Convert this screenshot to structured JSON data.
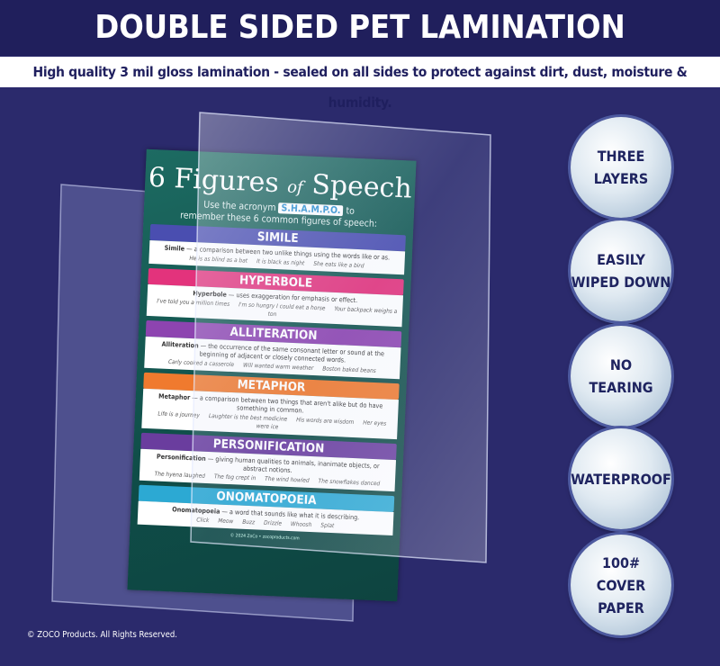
{
  "header": {
    "title": "DOUBLE SIDED PET LAMINATION",
    "subtitle": "High quality 3 mil gloss lamination - sealed on all sides to protect against dirt, dust, moisture & humidity."
  },
  "poster": {
    "title_number": "6 Figures",
    "title_of": "of",
    "title_end": "Speech",
    "intro_start": "Use the acronym",
    "acronym": "S.H.A.M.P.O.",
    "intro_end": "to remember these 6 common figures of speech:",
    "sections": [
      {
        "heading": "SIMILE",
        "color": "#4a4eb0",
        "term": "Simile",
        "definition": "— a comparison between two unlike things using the words like or as.",
        "examples": [
          "He is as blind as a bat",
          "It is black as night",
          "She eats like a bird"
        ]
      },
      {
        "heading": "HYPERBOLE",
        "color": "#e3337c",
        "term": "Hyperbole",
        "definition": "— uses exaggeration for emphasis or effect.",
        "examples": [
          "I've told you a million times",
          "I'm so hungry I could eat a horse",
          "Your backpack weighs a ton"
        ]
      },
      {
        "heading": "ALLITERATION",
        "color": "#8d44b0",
        "term": "Alliteration",
        "definition": "— the occurrence of the same consonant letter or sound at the beginning of adjacent or closely connected words.",
        "examples": [
          "Carly cooked a casserole",
          "Will wanted warm weather",
          "Boston baked beans"
        ]
      },
      {
        "heading": "METAPHOR",
        "color": "#f07a2e",
        "term": "Metaphor",
        "definition": "— a comparison between two things that aren't alike but do have something in common.",
        "examples": [
          "Life is a journey",
          "Laughter is the best medicine",
          "His words are wisdom",
          "Her eyes were ice"
        ]
      },
      {
        "heading": "PERSONIFICATION",
        "color": "#6a3d9e",
        "term": "Personification",
        "definition": "— giving human qualities to animals, inanimate objects, or abstract notions.",
        "examples": [
          "The hyena laughed",
          "The fog crept in",
          "The wind howled",
          "The snowflakes danced"
        ]
      },
      {
        "heading": "ONOMATOPOEIA",
        "color": "#2ca9d3",
        "term": "Onomatopoeia",
        "definition": "— a word that sounds like what it is describing.",
        "examples": [
          "Click",
          "Meow",
          "Buzz",
          "Drizzle",
          "Whoosh",
          "Splat"
        ]
      }
    ],
    "footer": "© 2024 ZoCo • zocoproducts.com"
  },
  "badges": [
    [
      "THREE",
      "LAYERS"
    ],
    [
      "EASILY",
      "WIPED DOWN"
    ],
    [
      "NO",
      "TEARING"
    ],
    [
      "WATERPROOF"
    ],
    [
      "100#",
      "COVER",
      "PAPER"
    ]
  ],
  "copyright": "© ZOCO Products. All Rights Reserved."
}
